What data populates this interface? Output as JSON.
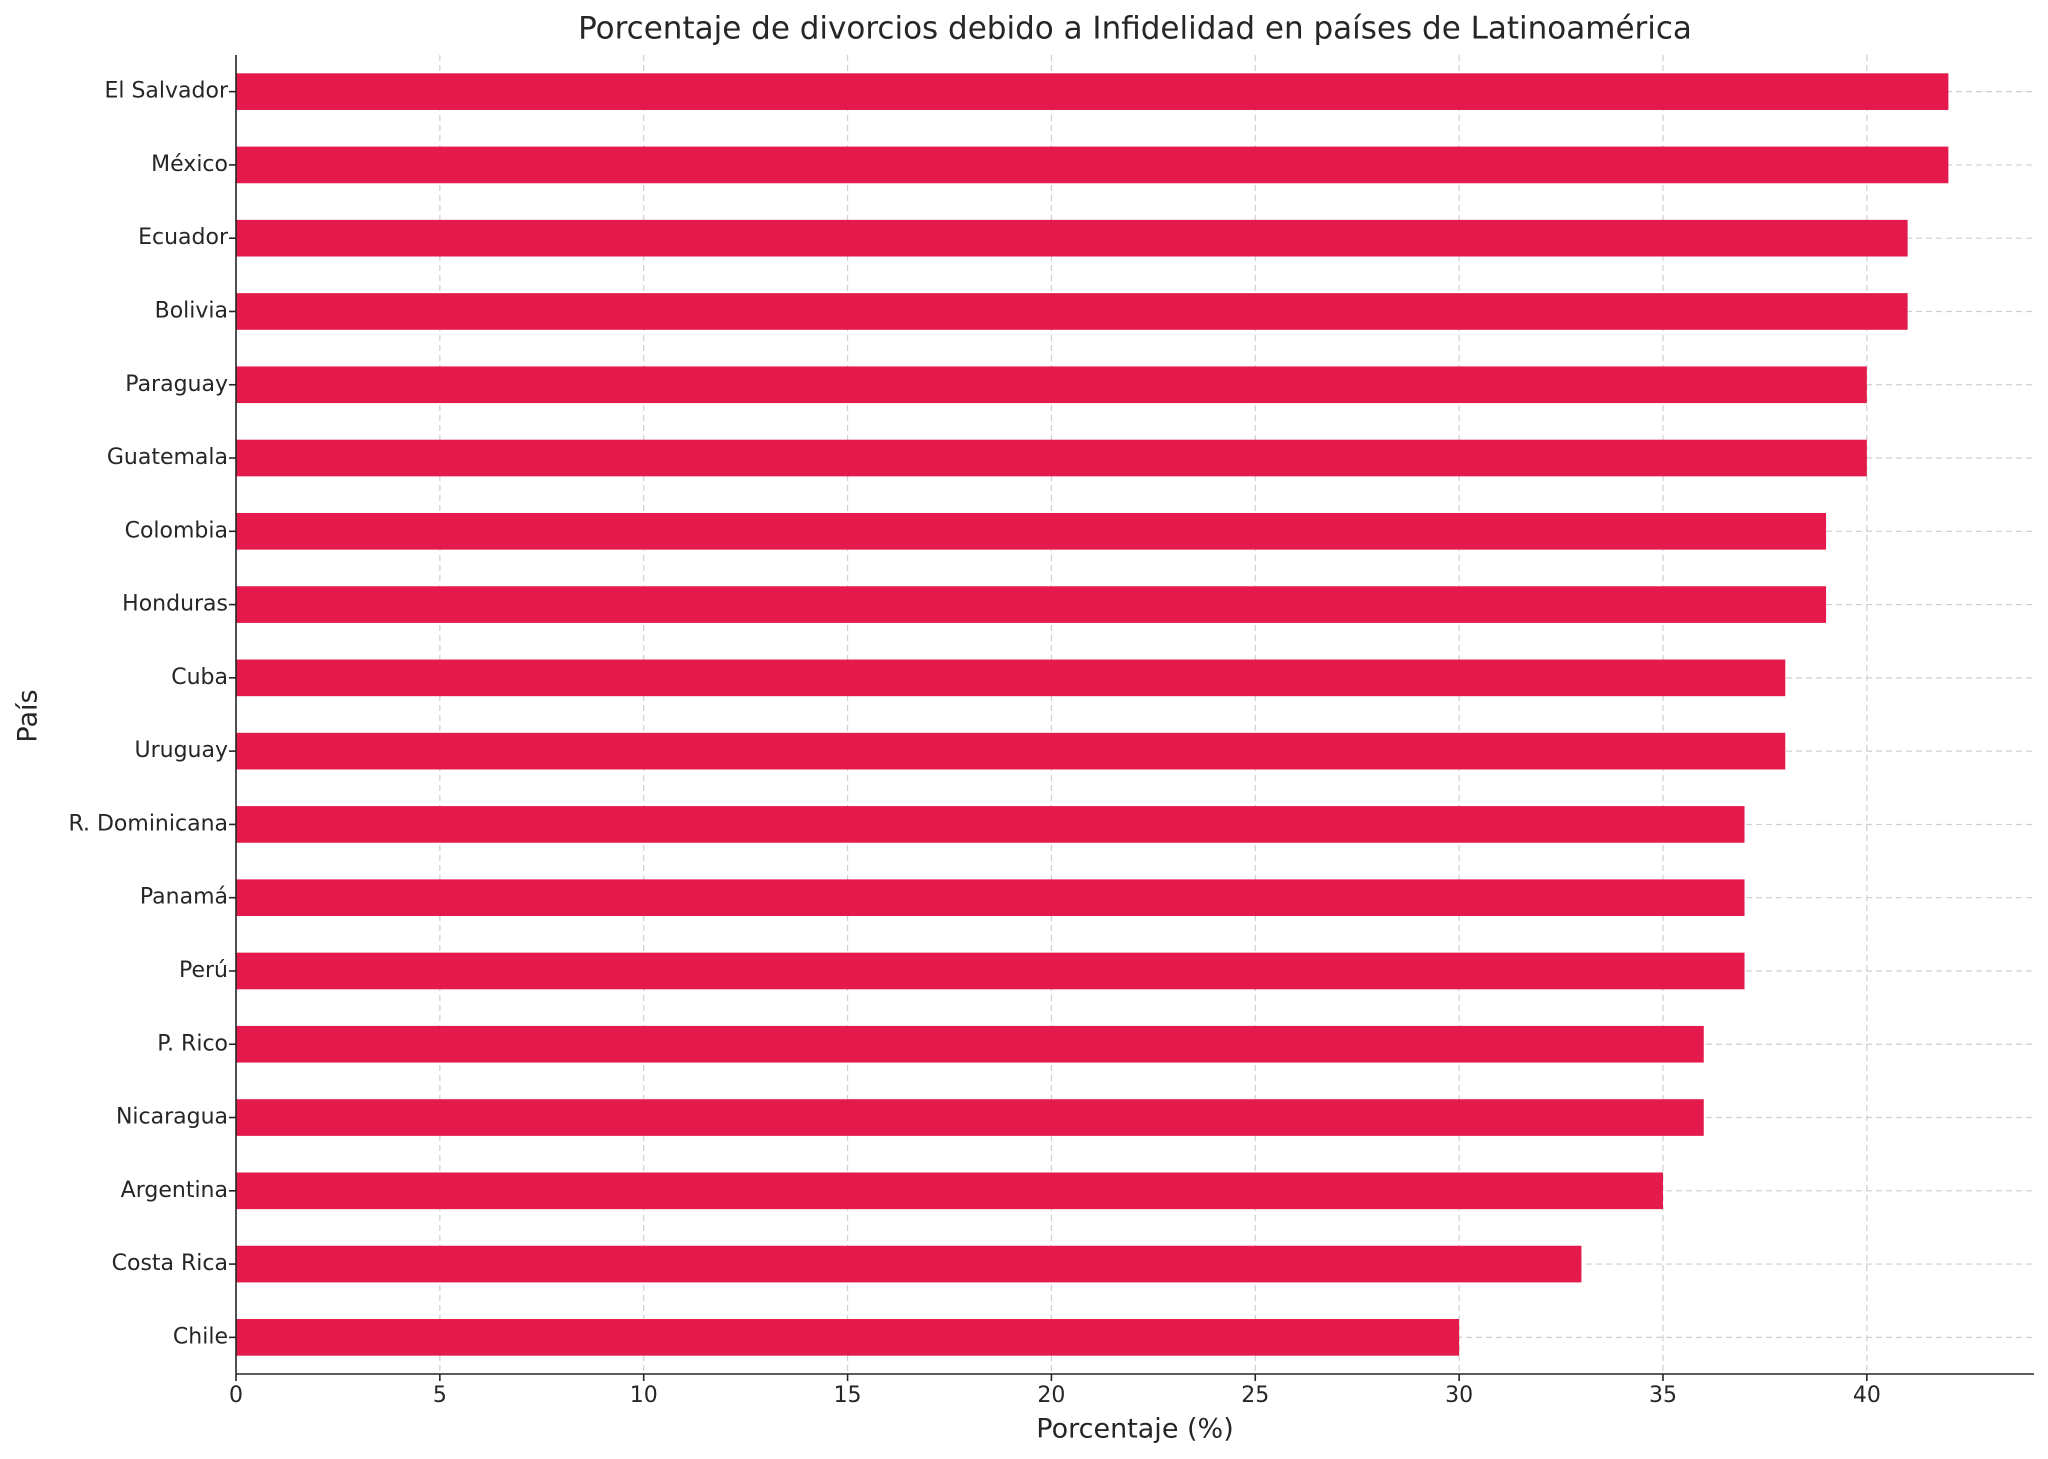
{
  "chart_data": {
    "type": "barh",
    "title": "Porcentaje de divorcios debido a Infidelidad en países de Latinoamérica",
    "xlabel": "Porcentaje (%)",
    "ylabel": "País",
    "categories": [
      "El Salvador",
      "México",
      "Ecuador",
      "Bolivia",
      "Paraguay",
      "Guatemala",
      "Colombia",
      "Honduras",
      "Cuba",
      "Uruguay",
      "R. Dominicana",
      "Panamá",
      "Perú",
      "P. Rico",
      "Nicaragua",
      "Argentina",
      "Costa Rica",
      "Chile"
    ],
    "values": [
      42,
      42,
      41,
      41,
      40,
      40,
      39,
      39,
      38,
      38,
      37,
      37,
      37,
      36,
      36,
      35,
      33,
      30
    ],
    "color": "#e31a4b",
    "xlim": [
      0,
      44.1
    ],
    "xticks": [
      0,
      5,
      10,
      15,
      20,
      25,
      30,
      35,
      40
    ],
    "grid": true
  }
}
